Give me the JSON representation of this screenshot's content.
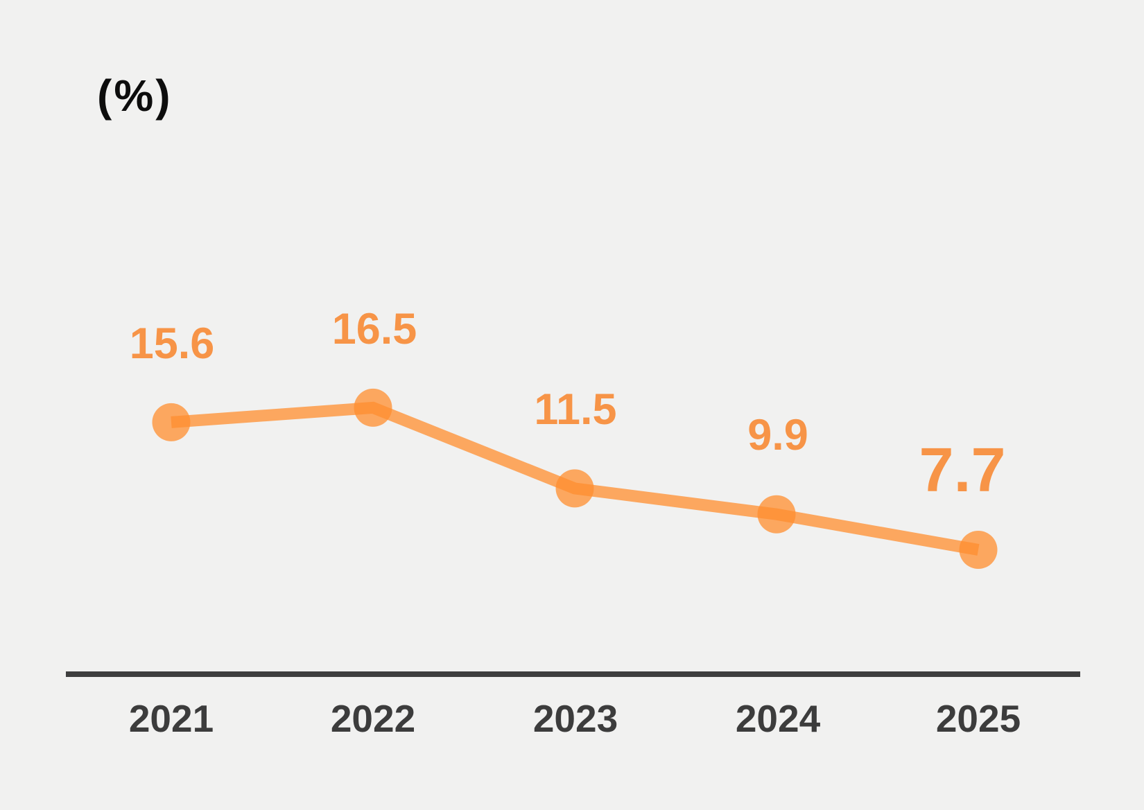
{
  "chart_data": {
    "type": "line",
    "title": "",
    "xlabel": "",
    "ylabel": "(%)",
    "categories": [
      "2021",
      "2022",
      "2023",
      "2024",
      "2025"
    ],
    "values": [
      15.6,
      16.5,
      11.5,
      9.9,
      7.7
    ],
    "labels": [
      "15.6",
      "16.5",
      "11.5",
      "9.9",
      "7.7"
    ],
    "ylim": [
      0,
      20
    ],
    "grid": false,
    "legend": "none",
    "marker": "circle",
    "highlight_last_label": true
  },
  "colors": {
    "background": "#F1F1F0",
    "series_orange_rgba": "rgba(255,141,47,0.75)",
    "series_orange_base": "#FF8D2F",
    "value_label_orange": "#F79447",
    "axis_line_gray": "#3E3E3E",
    "tick_text_gray": "#3C3C3C",
    "unit_text_black": "#0D0D0D"
  }
}
